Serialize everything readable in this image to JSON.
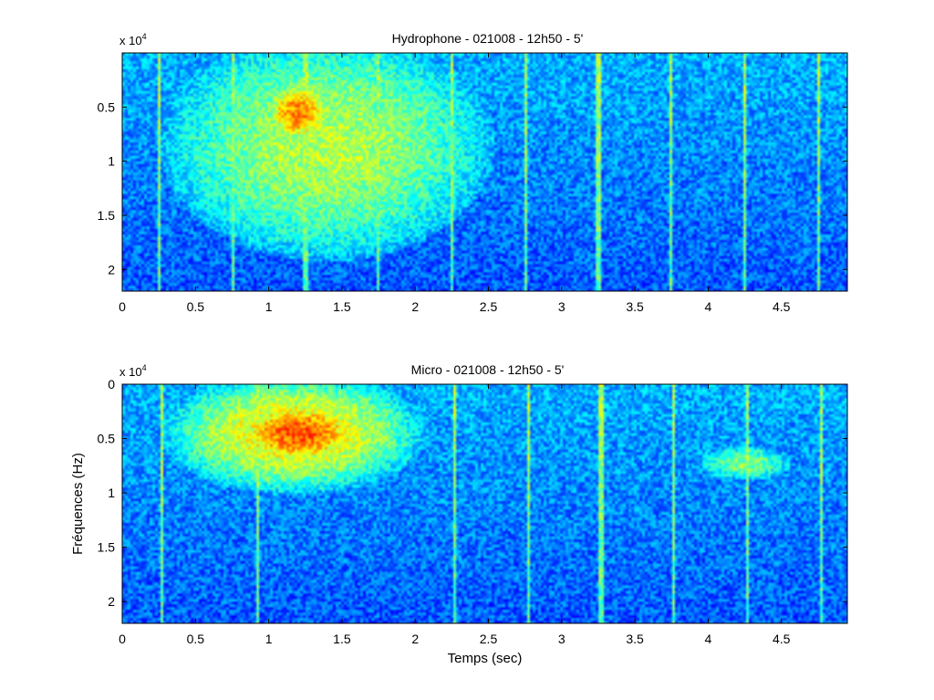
{
  "chart_data": [
    {
      "type": "heatmap",
      "title": "Hydrophone - 021008 - 12h50 - 5'",
      "xlabel": "",
      "ylabel": "",
      "xlim": [
        0,
        4.95
      ],
      "ylim": [
        2.2,
        0
      ],
      "y_multiplier_label": "x 10",
      "y_multiplier_exponent": "4",
      "xticks": [
        0,
        0.5,
        1,
        1.5,
        2,
        2.5,
        3,
        3.5,
        4,
        4.5
      ],
      "xtick_labels": [
        "0",
        "0.5",
        "1",
        "1.5",
        "2",
        "2.5",
        "3",
        "3.5",
        "4",
        "4.5"
      ],
      "yticks": [
        0.5,
        1,
        1.5,
        2
      ],
      "ytick_labels": [
        "0.5",
        "1",
        "1.5",
        "2"
      ],
      "colormap": "jet",
      "grid": false,
      "vertical_lines_x": [
        0.25,
        0.75,
        1.25,
        1.75,
        2.25,
        2.75,
        3.25,
        3.75,
        4.25,
        4.75
      ],
      "hot_regions": [
        {
          "x": [
            0.5,
            2.3
          ],
          "y": [
            0.0,
            1.7
          ],
          "level": 0.55
        },
        {
          "x": [
            1.0,
            1.4
          ],
          "y": [
            0.3,
            0.8
          ],
          "level": 0.75
        }
      ]
    },
    {
      "type": "heatmap",
      "title": "Micro - 021008 - 12h50 - 5'",
      "xlabel": "Temps (sec)",
      "ylabel": "Fréquences (Hz)",
      "xlim": [
        0,
        4.95
      ],
      "ylim": [
        2.2,
        0
      ],
      "y_multiplier_label": "x 10",
      "y_multiplier_exponent": "4",
      "xticks": [
        0,
        0.5,
        1,
        1.5,
        2,
        2.5,
        3,
        3.5,
        4,
        4.5
      ],
      "xtick_labels": [
        "0",
        "0.5",
        "1",
        "1.5",
        "2",
        "2.5",
        "3",
        "3.5",
        "4",
        "4.5"
      ],
      "yticks": [
        0,
        0.5,
        1,
        1.5,
        2
      ],
      "ytick_labels": [
        "0",
        "0.5",
        "1",
        "1.5",
        "2"
      ],
      "colormap": "jet",
      "grid": false,
      "vertical_lines_x": [
        0.27,
        0.92,
        2.27,
        2.77,
        3.27,
        3.77,
        4.27,
        4.77
      ],
      "hot_regions": [
        {
          "x": [
            0.45,
            1.9
          ],
          "y": [
            0.0,
            0.9
          ],
          "level": 0.65
        },
        {
          "x": [
            0.8,
            1.6
          ],
          "y": [
            0.2,
            0.7
          ],
          "level": 0.8
        },
        {
          "x": [
            4.0,
            4.5
          ],
          "y": [
            0.6,
            0.85
          ],
          "level": 0.5
        }
      ]
    }
  ]
}
